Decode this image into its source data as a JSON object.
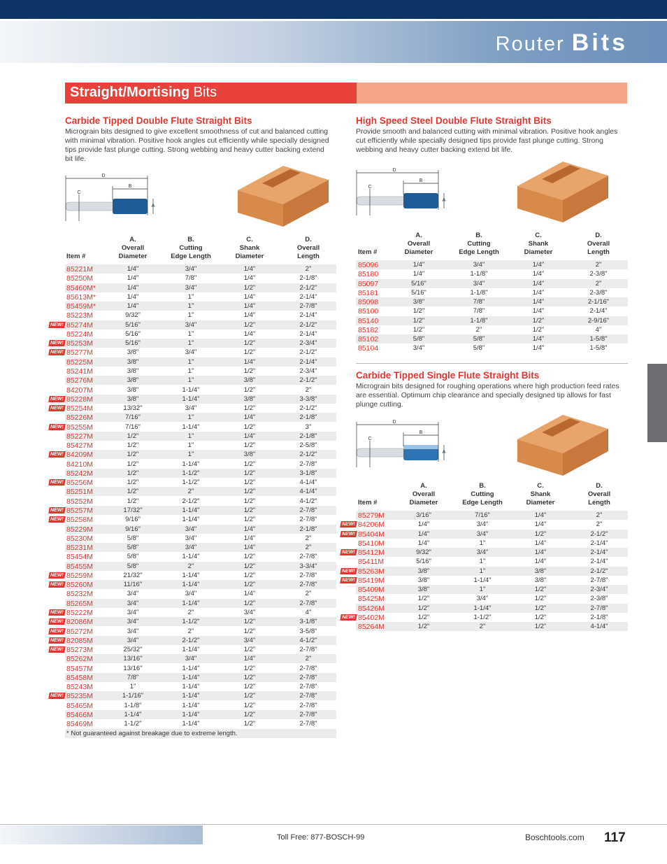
{
  "header": {
    "title_light": "Router",
    "title_bold": "Bits"
  },
  "section": {
    "title_bold": "Straight/Mortising",
    "title_light": "Bits"
  },
  "badge": "NEW!",
  "tables": [
    {
      "title": "Carbide Tipped Double Flute Straight Bits",
      "description": "Micrograin bits designed to give excellent smoothness of cut and balanced cutting with minimal vibration. Positive hook angles cut efficiently while specially designed tips provide fast plunge cutting. Strong webbing and heavy cutter backing extend bit life.",
      "diagram_labels": [
        "D",
        "B",
        "C",
        "A"
      ],
      "columns": [
        [
          "Item #"
        ],
        [
          "A.",
          "Overall",
          "Diameter"
        ],
        [
          "B.",
          "Cutting",
          "Edge Length"
        ],
        [
          "C.",
          "Shank",
          "Diameter"
        ],
        [
          "D.",
          "Overall",
          "Length"
        ]
      ],
      "rows": [
        {
          "new": false,
          "cells": [
            "85221M",
            "1/4\"",
            "3/4\"",
            "1/4\"",
            "2\""
          ]
        },
        {
          "new": false,
          "cells": [
            "85250M",
            "1/4\"",
            "7/8\"",
            "1/4\"",
            "2-1/8\""
          ]
        },
        {
          "new": false,
          "cells": [
            "85460M*",
            "1/4\"",
            "3/4\"",
            "1/2\"",
            "2-1/2\""
          ]
        },
        {
          "new": false,
          "cells": [
            "85613M*",
            "1/4\"",
            "1\"",
            "1/4\"",
            "2-1/4\""
          ]
        },
        {
          "new": false,
          "cells": [
            "85459M*",
            "1/4\"",
            "1\"",
            "1/4\"",
            "2-7/8\""
          ]
        },
        {
          "new": false,
          "cells": [
            "85223M",
            "9/32\"",
            "1\"",
            "1/4\"",
            "2-1/4\""
          ]
        },
        {
          "new": true,
          "cells": [
            "85274M",
            "5/16\"",
            "3/4\"",
            "1/2\"",
            "2-1/2\""
          ]
        },
        {
          "new": false,
          "cells": [
            "85224M",
            "5/16\"",
            "1\"",
            "1/4\"",
            "2-1/4\""
          ]
        },
        {
          "new": true,
          "cells": [
            "85253M",
            "5/16\"",
            "1\"",
            "1/2\"",
            "2-3/4\""
          ]
        },
        {
          "new": true,
          "cells": [
            "85277M",
            "3/8\"",
            "3/4\"",
            "1/2\"",
            "2-1/2\""
          ]
        },
        {
          "new": false,
          "cells": [
            "85225M",
            "3/8\"",
            "1\"",
            "1/4\"",
            "2-1/4\""
          ]
        },
        {
          "new": false,
          "cells": [
            "85241M",
            "3/8\"",
            "1\"",
            "1/2\"",
            "2-3/4\""
          ]
        },
        {
          "new": false,
          "cells": [
            "85276M",
            "3/8\"",
            "1\"",
            "3/8\"",
            "2-1/2\""
          ]
        },
        {
          "new": false,
          "cells": [
            "84207M",
            "3/8\"",
            "1-1/4\"",
            "1/2\"",
            "2\""
          ]
        },
        {
          "new": true,
          "cells": [
            "85228M",
            "3/8\"",
            "1-1/4\"",
            "3/8\"",
            "3-3/8\""
          ]
        },
        {
          "new": true,
          "cells": [
            "85254M",
            "13/32\"",
            "3/4\"",
            "1/2\"",
            "2-1/2\""
          ]
        },
        {
          "new": false,
          "cells": [
            "85226M",
            "7/16\"",
            "1\"",
            "1/4\"",
            "2-1/8\""
          ]
        },
        {
          "new": true,
          "cells": [
            "85255M",
            "7/16\"",
            "1-1/4\"",
            "1/2\"",
            "3\""
          ]
        },
        {
          "new": false,
          "cells": [
            "85227M",
            "1/2\"",
            "1\"",
            "1/4\"",
            "2-1/8\""
          ]
        },
        {
          "new": false,
          "cells": [
            "85427M",
            "1/2\"",
            "1\"",
            "1/2\"",
            "2-5/8\""
          ]
        },
        {
          "new": true,
          "cells": [
            "84209M",
            "1/2\"",
            "1\"",
            "3/8\"",
            "2-1/2\""
          ]
        },
        {
          "new": false,
          "cells": [
            "84210M",
            "1/2\"",
            "1-1/4\"",
            "1/2\"",
            "2-7/8\""
          ]
        },
        {
          "new": false,
          "cells": [
            "85242M",
            "1/2\"",
            "1-1/2\"",
            "1/2\"",
            "3-1/8\""
          ]
        },
        {
          "new": true,
          "cells": [
            "85256M",
            "1/2\"",
            "1-1/2\"",
            "1/2\"",
            "4-1/4\""
          ]
        },
        {
          "new": false,
          "cells": [
            "85251M",
            "1/2\"",
            "2\"",
            "1/2\"",
            "4-1/4\""
          ]
        },
        {
          "new": false,
          "cells": [
            "85252M",
            "1/2\"",
            "2-1/2\"",
            "1/2\"",
            "4-1/2\""
          ]
        },
        {
          "new": true,
          "cells": [
            "85257M",
            "17/32\"",
            "1-1/4\"",
            "1/2\"",
            "2-7/8\""
          ]
        },
        {
          "new": true,
          "cells": [
            "85258M",
            "9/16\"",
            "1-1/4\"",
            "1/2\"",
            "2-7/8\""
          ]
        },
        {
          "new": false,
          "cells": [
            "85229M",
            "9/16\"",
            "3/4\"",
            "1/4\"",
            "2-1/8\""
          ]
        },
        {
          "new": false,
          "cells": [
            "85230M",
            "5/8\"",
            "3/4\"",
            "1/4\"",
            "2\""
          ]
        },
        {
          "new": false,
          "cells": [
            "85231M",
            "5/8\"",
            "3/4\"",
            "1/4\"",
            "2\""
          ]
        },
        {
          "new": false,
          "cells": [
            "85454M",
            "5/8\"",
            "1-1/4\"",
            "1/2\"",
            "2-7/8\""
          ]
        },
        {
          "new": false,
          "cells": [
            "85455M",
            "5/8\"",
            "2\"",
            "1/2\"",
            "3-3/4\""
          ]
        },
        {
          "new": true,
          "cells": [
            "85259M",
            "21/32\"",
            "1-1/4\"",
            "1/2\"",
            "2-7/8\""
          ]
        },
        {
          "new": true,
          "cells": [
            "85260M",
            "11/16\"",
            "1-1/4\"",
            "1/2\"",
            "2-7/8\""
          ]
        },
        {
          "new": false,
          "cells": [
            "85232M",
            "3/4\"",
            "3/4\"",
            "1/4\"",
            "2\""
          ]
        },
        {
          "new": false,
          "cells": [
            "85265M",
            "3/4\"",
            "1-1/4\"",
            "1/2\"",
            "2-7/8\""
          ]
        },
        {
          "new": true,
          "cells": [
            "85222M",
            "3/4\"",
            "2\"",
            "3/4\"",
            "4\""
          ]
        },
        {
          "new": true,
          "cells": [
            "82086M",
            "3/4\"",
            "1-1/2\"",
            "1/2\"",
            "3-1/8\""
          ]
        },
        {
          "new": true,
          "cells": [
            "85272M",
            "3/4\"",
            "2\"",
            "1/2\"",
            "3-5/8\""
          ]
        },
        {
          "new": true,
          "cells": [
            "82085M",
            "3/4\"",
            "2-1/2\"",
            "3/4\"",
            "4-1/2\""
          ]
        },
        {
          "new": true,
          "cells": [
            "85273M",
            "25/32\"",
            "1-1/4\"",
            "1/2\"",
            "2-7/8\""
          ]
        },
        {
          "new": false,
          "cells": [
            "85262M",
            "13/16\"",
            "3/4\"",
            "1/4\"",
            "2\""
          ]
        },
        {
          "new": false,
          "cells": [
            "85457M",
            "13/16\"",
            "1-1/4\"",
            "1/2\"",
            "2-7/8\""
          ]
        },
        {
          "new": false,
          "cells": [
            "85458M",
            "7/8\"",
            "1-1/4\"",
            "1/2\"",
            "2-7/8\""
          ]
        },
        {
          "new": false,
          "cells": [
            "85243M",
            "1\"",
            "1-1/4\"",
            "1/2\"",
            "2-7/8\""
          ]
        },
        {
          "new": true,
          "cells": [
            "85235M",
            "1-1/16\"",
            "1-1/4\"",
            "1/2\"",
            "2-7/8\""
          ]
        },
        {
          "new": false,
          "cells": [
            "85465M",
            "1-1/8\"",
            "1-1/4\"",
            "1/2\"",
            "2-7/8\""
          ]
        },
        {
          "new": false,
          "cells": [
            "85466M",
            "1-1/4\"",
            "1-1/4\"",
            "1/2\"",
            "2-7/8\""
          ]
        },
        {
          "new": false,
          "cells": [
            "85469M",
            "1-1/2\"",
            "1-1/4\"",
            "1/2\"",
            "2-7/8\""
          ]
        }
      ],
      "footnote": "* Not guaranteed against breakage due to extreme length."
    },
    {
      "title": "High Speed Steel Double Flute Straight Bits",
      "description": "Provide smooth and balanced cutting with minimal vibration. Positive hook angles cut efficiently while specially designed tips provide fast plunge cutting. Strong webbing and heavy cutter backing extend bit life.",
      "diagram_labels": [
        "D",
        "B",
        "C",
        "A"
      ],
      "columns": [
        [
          "Item #"
        ],
        [
          "A.",
          "Overall",
          "Diameter"
        ],
        [
          "B.",
          "Cutting",
          "Edge Length"
        ],
        [
          "C.",
          "Shank",
          "Diameter"
        ],
        [
          "D.",
          "Overall",
          "Length"
        ]
      ],
      "rows": [
        {
          "new": false,
          "cells": [
            "85096",
            "1/4\"",
            "3/4\"",
            "1/4\"",
            "2\""
          ]
        },
        {
          "new": false,
          "cells": [
            "85180",
            "1/4\"",
            "1-1/8\"",
            "1/4\"",
            "2-3/8\""
          ]
        },
        {
          "new": false,
          "cells": [
            "85097",
            "5/16\"",
            "3/4\"",
            "1/4\"",
            "2\""
          ]
        },
        {
          "new": false,
          "cells": [
            "85181",
            "5/16\"",
            "1-1/8\"",
            "1/4\"",
            "2-3/8\""
          ]
        },
        {
          "new": false,
          "cells": [
            "85098",
            "3/8\"",
            "7/8\"",
            "1/4\"",
            "2-1/16\""
          ]
        },
        {
          "new": false,
          "cells": [
            "85100",
            "1/2\"",
            "7/8\"",
            "1/4\"",
            "2-1/4\""
          ]
        },
        {
          "new": false,
          "cells": [
            "85140",
            "1/2\"",
            "1-1/8\"",
            "1/2\"",
            "2-9/16\""
          ]
        },
        {
          "new": false,
          "cells": [
            "85182",
            "1/2\"",
            "2\"",
            "1/2\"",
            "4\""
          ]
        },
        {
          "new": false,
          "cells": [
            "85102",
            "5/8\"",
            "5/8\"",
            "1/4\"",
            "1-5/8\""
          ]
        },
        {
          "new": false,
          "cells": [
            "85104",
            "3/4\"",
            "5/8\"",
            "1/4\"",
            "1-5/8\""
          ]
        }
      ]
    },
    {
      "title": "Carbide Tipped Single Flute Straight Bits",
      "description": "Micrograin bits designed for roughing operations where high production feed rates are essential. Optimum chip clearance and specially designed tip allows for fast plunge cutting.",
      "diagram_labels": [
        "D",
        "B",
        "C",
        "A"
      ],
      "columns": [
        [
          "Item #"
        ],
        [
          "A.",
          "Overall",
          "Diameter"
        ],
        [
          "B.",
          "Cutting",
          "Edge Length"
        ],
        [
          "C.",
          "Shank",
          "Diameter"
        ],
        [
          "D.",
          "Overall",
          "Length"
        ]
      ],
      "rows": [
        {
          "new": false,
          "cells": [
            "85279M",
            "3/16\"",
            "7/16\"",
            "1/4\"",
            "2\""
          ]
        },
        {
          "new": true,
          "cells": [
            "84206M",
            "1/4\"",
            "3/4\"",
            "1/4\"",
            "2\""
          ]
        },
        {
          "new": true,
          "cells": [
            "85404M",
            "1/4\"",
            "3/4\"",
            "1/2\"",
            "2-1/2\""
          ]
        },
        {
          "new": false,
          "cells": [
            "85410M",
            "1/4\"",
            "1\"",
            "1/4\"",
            "2-1/4\""
          ]
        },
        {
          "new": true,
          "cells": [
            "85412M",
            "9/32\"",
            "3/4\"",
            "1/4\"",
            "2-1/4\""
          ]
        },
        {
          "new": false,
          "cells": [
            "85411M",
            "5/16\"",
            "1\"",
            "1/4\"",
            "2-1/4\""
          ]
        },
        {
          "new": true,
          "cells": [
            "85263M",
            "3/8\"",
            "1\"",
            "3/8\"",
            "2-1/2\""
          ]
        },
        {
          "new": true,
          "cells": [
            "85419M",
            "3/8\"",
            "1-1/4\"",
            "3/8\"",
            "2-7/8\""
          ]
        },
        {
          "new": false,
          "cells": [
            "85409M",
            "3/8\"",
            "1\"",
            "1/2\"",
            "2-3/4\""
          ]
        },
        {
          "new": false,
          "cells": [
            "85425M",
            "1/2\"",
            "3/4\"",
            "1/2\"",
            "2-3/8\""
          ]
        },
        {
          "new": false,
          "cells": [
            "85426M",
            "1/2\"",
            "1-1/4\"",
            "1/2\"",
            "2-7/8\""
          ]
        },
        {
          "new": true,
          "cells": [
            "85402M",
            "1/2\"",
            "1-1/2\"",
            "1/2\"",
            "2-1/8\""
          ]
        },
        {
          "new": false,
          "cells": [
            "85264M",
            "1/2\"",
            "2\"",
            "1/2\"",
            "4-1/4\""
          ]
        }
      ]
    }
  ],
  "footer": {
    "phone": "Toll Free:  877-BOSCH-99",
    "site": "Boschtools.com",
    "page": "117"
  }
}
